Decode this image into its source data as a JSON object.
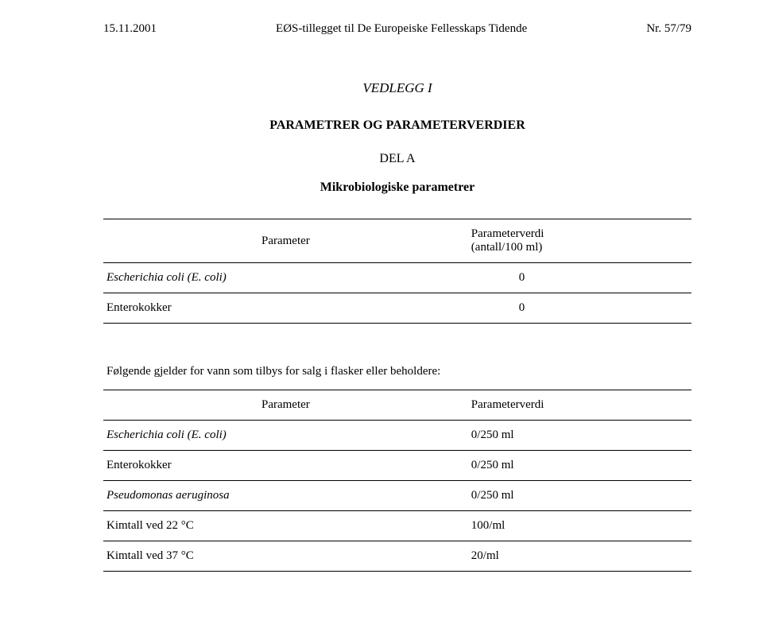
{
  "header": {
    "date": "15.11.2001",
    "center": "EØS-tillegget til De Europeiske Fellesskaps Tidende",
    "pageno": "Nr. 57/79"
  },
  "vedlegg": "VEDLEGG I",
  "main_title": "PARAMETRER OG PARAMETERVERDIER",
  "del_a": "DEL A",
  "subtitle": "Mikrobiologiske parametrer",
  "table1": {
    "header_param": "Parameter",
    "header_val_line1": "Parameterverdi",
    "header_val_line2": "(antall/100 ml)",
    "rows": [
      {
        "param": "Escherichia coli (E. coli)",
        "value": "0",
        "italic": true
      },
      {
        "param": "Enterokokker",
        "value": "0",
        "italic": false
      }
    ]
  },
  "intertext": "Følgende gjelder for vann som tilbys for salg i flasker eller beholdere:",
  "table2": {
    "header_param": "Parameter",
    "header_val": "Parameterverdi",
    "rows": [
      {
        "param": "Escherichia coli (E. coli)",
        "value": "0/250 ml",
        "italic": true
      },
      {
        "param": "Enterokokker",
        "value": "0/250 ml",
        "italic": false
      },
      {
        "param": "Pseudomonas aeruginosa",
        "value": "0/250 ml",
        "italic": true
      },
      {
        "param": "Kimtall ved 22 °C",
        "value": "100/ml",
        "italic": false
      },
      {
        "param": "Kimtall ved 37 °C",
        "value": "20/ml",
        "italic": false
      }
    ]
  },
  "colors": {
    "text": "#000000",
    "background": "#ffffff",
    "rule": "#000000"
  }
}
